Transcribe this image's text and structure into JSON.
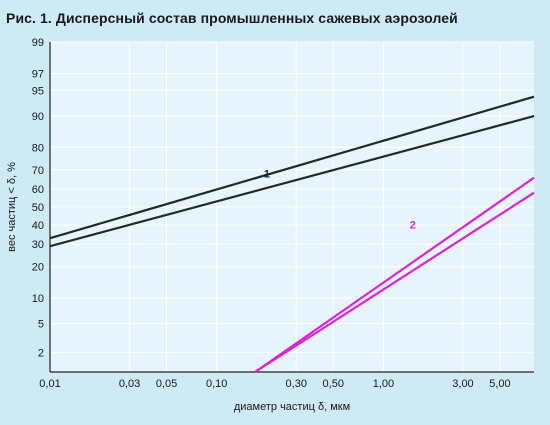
{
  "colors": {
    "background": "#cdeaf5",
    "plot_background": "#e6f5fb",
    "grid": "#ffffff",
    "axis": "#222222",
    "series1": "#1f2a2a",
    "series2": "#e020d8"
  },
  "chart_data": {
    "type": "line",
    "title": "Рис. 1. Дисперсный состав промышленных сажевых аэрозолей",
    "xlabel": "диаметр частиц δ, мкм",
    "ylabel": "вес частиц < δ, %",
    "x_scale": "log",
    "y_scale": "probability",
    "xlim": [
      0.01,
      8
    ],
    "ylim": [
      1,
      99
    ],
    "grid": true,
    "x_ticks": [
      {
        "value": 0.01,
        "label": "0,01"
      },
      {
        "value": 0.03,
        "label": "0,03"
      },
      {
        "value": 0.05,
        "label": "0,05"
      },
      {
        "value": 0.1,
        "label": "0,10"
      },
      {
        "value": 0.3,
        "label": "0,30"
      },
      {
        "value": 0.5,
        "label": "0,50"
      },
      {
        "value": 1,
        "label": "1,00"
      },
      {
        "value": 3,
        "label": "3,00"
      },
      {
        "value": 5,
        "label": "5,00"
      }
    ],
    "y_ticks": [
      {
        "value": 2,
        "label": "2"
      },
      {
        "value": 5,
        "label": "5"
      },
      {
        "value": 10,
        "label": "10"
      },
      {
        "value": 20,
        "label": "20"
      },
      {
        "value": 30,
        "label": "30"
      },
      {
        "value": 40,
        "label": "40"
      },
      {
        "value": 50,
        "label": "50"
      },
      {
        "value": 60,
        "label": "60"
      },
      {
        "value": 70,
        "label": "70"
      },
      {
        "value": 80,
        "label": "80"
      },
      {
        "value": 90,
        "label": "90"
      },
      {
        "value": 95,
        "label": "95"
      },
      {
        "value": 97,
        "label": "97"
      },
      {
        "value": 99,
        "label": "99"
      }
    ],
    "series": [
      {
        "name": "1",
        "color": "#1f2a2a",
        "lines": [
          {
            "x": [
              0.01,
              8
            ],
            "y": [
              33,
              94
            ]
          },
          {
            "x": [
              0.01,
              8
            ],
            "y": [
              29,
              90
            ]
          }
        ],
        "label_at": {
          "x": 0.2,
          "y": 66
        }
      },
      {
        "name": "2",
        "color": "#e020d8",
        "lines": [
          {
            "x": [
              0.17,
              8
            ],
            "y": [
              1,
              66
            ]
          },
          {
            "x": [
              0.17,
              8
            ],
            "y": [
              1,
              58
            ]
          }
        ],
        "label_at": {
          "x": 1.5,
          "y": 38
        }
      }
    ]
  }
}
